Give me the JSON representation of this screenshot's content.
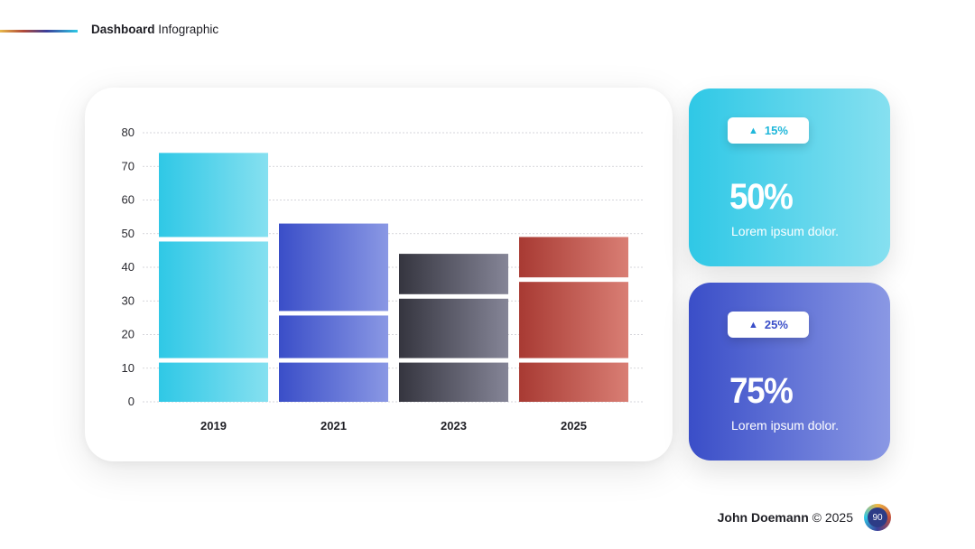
{
  "header": {
    "title_bold": "Dashboard",
    "title_rest": "Infographic"
  },
  "chart_data": {
    "type": "bar",
    "stacked": true,
    "categories": [
      "2019",
      "2021",
      "2023",
      "2025"
    ],
    "series": [
      {
        "values": [
          13,
          13,
          13,
          13
        ]
      },
      {
        "values": [
          36,
          14,
          19,
          24
        ]
      },
      {
        "values": [
          25,
          26,
          12,
          12
        ]
      }
    ],
    "ylim": [
      0,
      80
    ],
    "yticks": [
      0,
      10,
      20,
      30,
      40,
      50,
      60,
      70,
      80
    ],
    "grid": true,
    "colors": {
      "2019": [
        "#2fc8e6",
        "#86e0f0"
      ],
      "2021": [
        "#3a4ec8",
        "#8a98e4"
      ],
      "2023": [
        "#35353f",
        "#858597"
      ],
      "2025": [
        "#a83a33",
        "#d97e74"
      ]
    }
  },
  "kpis": [
    {
      "badge": "15%",
      "value": "50%",
      "desc": "Lorem ipsum dolor.",
      "icon": "triangle-up-icon"
    },
    {
      "badge": "25%",
      "value": "75%",
      "desc": "Lorem ipsum dolor.",
      "icon": "triangle-up-icon"
    }
  ],
  "footer": {
    "author": "John Doemann",
    "copyright": "© 2025",
    "page_number": "90"
  }
}
